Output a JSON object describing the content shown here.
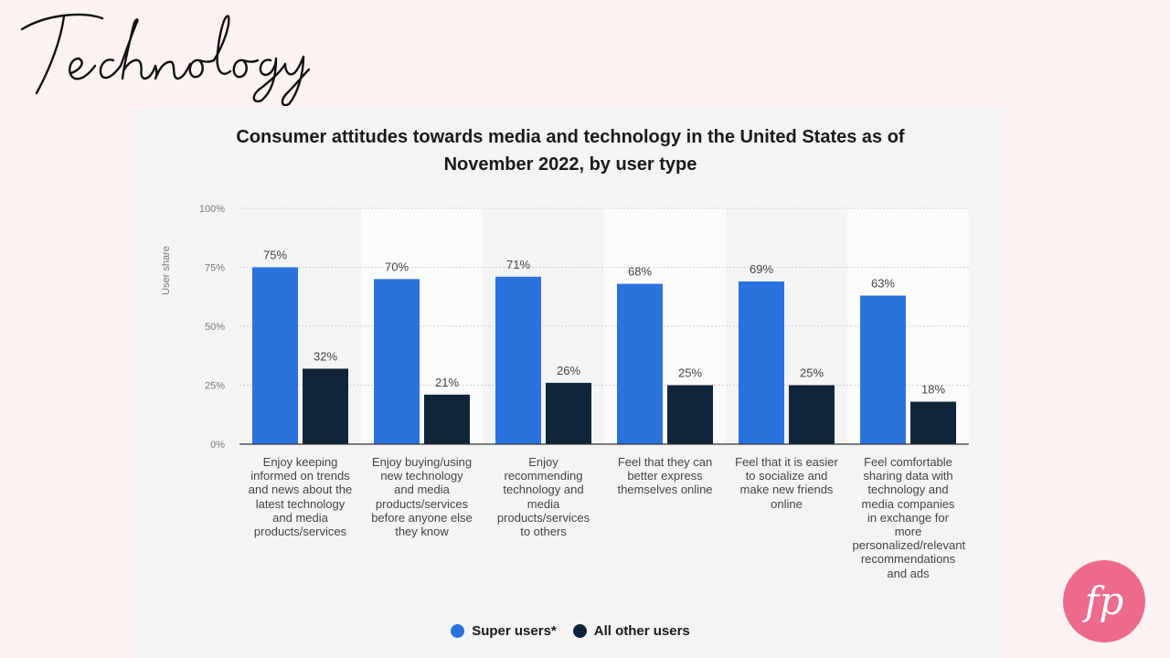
{
  "page": {
    "heading": "Technology",
    "logo_text": "fp"
  },
  "colors": {
    "background": "#fcf3f1",
    "card": "#f4f4f4",
    "super_users": "#2a72dd",
    "all_other_users": "#10253a",
    "logo": "#ec6a8c"
  },
  "chart_data": {
    "type": "bar",
    "title_lines": [
      "Consumer attitudes towards media and technology in the United States as of",
      "November 2022, by user type"
    ],
    "ylabel": "User share",
    "xlabel": "",
    "ylim": [
      0,
      100
    ],
    "yticks": [
      "0%",
      "25%",
      "50%",
      "75%",
      "100%"
    ],
    "grid": true,
    "legend_position": "bottom",
    "categories": [
      "Enjoy keeping informed on trends and news about the latest technology and media products/services",
      "Enjoy buying/using new technology and media products/services before anyone else they know",
      "Enjoy recommending technology and media products/services to others",
      "Feel that they can better express themselves online",
      "Feel that it is easier to socialize and make new friends online",
      "Feel comfortable sharing data with technology and media companies in exchange for more personalized/relevant recommendations and ads"
    ],
    "category_lines": [
      [
        "Enjoy keeping",
        "informed on trends",
        "and news about the",
        "latest technology",
        "and media",
        "products/services"
      ],
      [
        "Enjoy buying/using",
        "new technology",
        "and media",
        "products/services",
        "before anyone else",
        "they know"
      ],
      [
        "Enjoy",
        "recommending",
        "technology and",
        "media",
        "products/services",
        "to others"
      ],
      [
        "Feel that they can",
        "better express",
        "themselves online"
      ],
      [
        "Feel that it is easier",
        "to socialize and",
        "make new friends",
        "online"
      ],
      [
        "Feel comfortable",
        "sharing data with",
        "technology and",
        "media companies",
        "in exchange for",
        "more",
        "personalized/relevant",
        "recommendations",
        "and ads"
      ]
    ],
    "series": [
      {
        "name": "Super users*",
        "values": [
          75,
          70,
          71,
          68,
          69,
          63
        ],
        "labels": [
          "75%",
          "70%",
          "71%",
          "68%",
          "69%",
          "63%"
        ]
      },
      {
        "name": "All other users",
        "values": [
          32,
          21,
          26,
          25,
          25,
          18
        ],
        "labels": [
          "32%",
          "21%",
          "26%",
          "25%",
          "25%",
          "18%"
        ]
      }
    ]
  }
}
